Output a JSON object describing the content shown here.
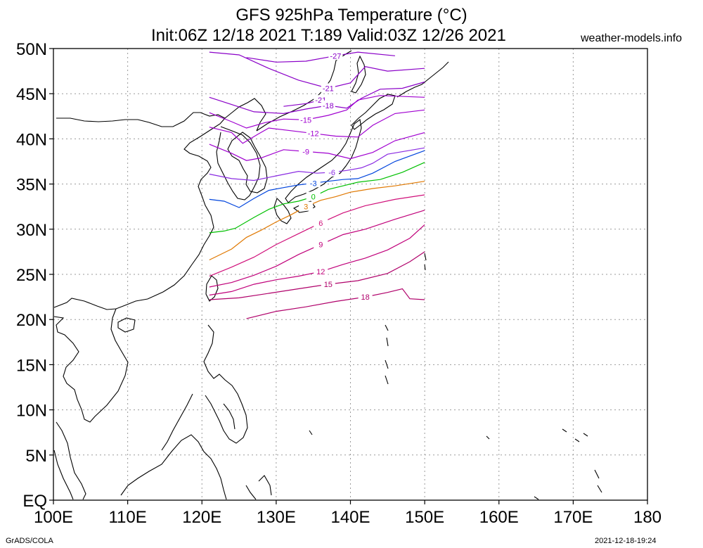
{
  "header": {
    "title_line1": "GFS 925hPa Temperature (°C)",
    "title_line2": "Init:06Z 12/18 2021 T:189 Valid:03Z 12/26 2021",
    "site": "weather-models.info"
  },
  "footer": {
    "left": "GrADS/COLA",
    "right": "2021-12-18-19:24"
  },
  "axes": {
    "lat_labels": [
      "EQ",
      "5N",
      "10N",
      "15N",
      "20N",
      "25N",
      "30N",
      "35N",
      "40N",
      "45N",
      "50N"
    ],
    "lat_values": [
      0,
      5,
      10,
      15,
      20,
      25,
      30,
      35,
      40,
      45,
      50
    ],
    "lon_labels": [
      "100E",
      "110E",
      "120E",
      "130E",
      "140E",
      "150E",
      "160E",
      "170E",
      "180"
    ],
    "lon_values": [
      100,
      110,
      120,
      130,
      140,
      150,
      160,
      170,
      180
    ],
    "lat_range": [
      0,
      50
    ],
    "lon_range": [
      100,
      180
    ],
    "grid": true
  },
  "contours": [
    {
      "level": -27,
      "label": "-27",
      "color": "#8a00c8",
      "points": [
        [
          126,
          49
        ],
        [
          130,
          48.5
        ],
        [
          134,
          48.6
        ],
        [
          138,
          49.2
        ],
        [
          141,
          49.6
        ],
        [
          146,
          49.2
        ]
      ]
    },
    {
      "level": -21,
      "label": "-21",
      "color": "#8a00c8",
      "points": [
        [
          121,
          49.6
        ],
        [
          125,
          49.3
        ],
        [
          129,
          47.8
        ],
        [
          133,
          46.5
        ],
        [
          137,
          45.6
        ],
        [
          140,
          46.2
        ],
        [
          142,
          48
        ],
        [
          145,
          47.5
        ],
        [
          150,
          47.8
        ]
      ]
    },
    {
      "level": -21,
      "label": "-21",
      "color": "#8a00c8",
      "points": [
        [
          131,
          43.6
        ],
        [
          134,
          43.9
        ],
        [
          136,
          44.3
        ],
        [
          137.5,
          43.8
        ]
      ]
    },
    {
      "level": -18,
      "label": "-18",
      "color": "#8a00c8",
      "points": [
        [
          121,
          44.6
        ],
        [
          124,
          43.8
        ],
        [
          127,
          43
        ],
        [
          131,
          42.8
        ],
        [
          134,
          43.3
        ],
        [
          137,
          43.7
        ],
        [
          139.5,
          43.4
        ],
        [
          141.5,
          44.5
        ],
        [
          144,
          45.5
        ],
        [
          147,
          45.6
        ],
        [
          150,
          46.3
        ]
      ]
    },
    {
      "level": -15,
      "label": "-15",
      "color": "#a000d0",
      "points": [
        [
          121,
          42.9
        ],
        [
          124,
          41.9
        ],
        [
          126,
          41.2
        ],
        [
          128.5,
          41.8
        ],
        [
          131,
          42.2
        ],
        [
          134,
          42.1
        ],
        [
          137,
          42.6
        ],
        [
          139.5,
          43.2
        ],
        [
          141,
          44.3
        ],
        [
          144,
          44.8
        ],
        [
          150,
          44.6
        ]
      ]
    },
    {
      "level": -12,
      "label": "-12",
      "color": "#a000d0",
      "points": [
        [
          121,
          41.3
        ],
        [
          124,
          40.7
        ],
        [
          125.5,
          39.5
        ],
        [
          127.5,
          40.5
        ],
        [
          129,
          41.2
        ],
        [
          132,
          40.9
        ],
        [
          135,
          40.6
        ],
        [
          138,
          40.3
        ],
        [
          141,
          40.2
        ],
        [
          143,
          41.5
        ],
        [
          146,
          42.8
        ],
        [
          150,
          43.2
        ]
      ]
    },
    {
      "level": -9,
      "label": "-9",
      "color": "#a000d0",
      "points": [
        [
          121,
          39.4
        ],
        [
          124,
          38.4
        ],
        [
          126,
          37.6
        ],
        [
          128,
          37.9
        ],
        [
          131,
          38.8
        ],
        [
          134,
          38.6
        ],
        [
          137,
          38.4
        ],
        [
          140,
          37.8
        ],
        [
          143,
          38.5
        ],
        [
          146,
          39.8
        ],
        [
          150,
          40.7
        ]
      ]
    },
    {
      "level": -6,
      "label": "-6",
      "color": "#8a2be2",
      "points": [
        [
          121,
          36.1
        ],
        [
          124,
          35.6
        ],
        [
          127,
          35.4
        ],
        [
          130,
          35.9
        ],
        [
          133,
          36.4
        ],
        [
          135.5,
          36.2
        ],
        [
          137.5,
          36.3
        ],
        [
          139.5,
          36.5
        ],
        [
          141.5,
          36.8
        ],
        [
          143,
          37.3
        ],
        [
          145,
          38.3
        ],
        [
          150,
          39
        ]
      ]
    },
    {
      "level": -3,
      "label": "-3",
      "color": "#0044dd",
      "points": [
        [
          121,
          33.3
        ],
        [
          123,
          33.1
        ],
        [
          125,
          32.4
        ],
        [
          127,
          33.4
        ],
        [
          129,
          34.3
        ],
        [
          131,
          34.6
        ],
        [
          133,
          34.9
        ],
        [
          135,
          35.1
        ],
        [
          137,
          35.3
        ],
        [
          139,
          35.5
        ],
        [
          141,
          35.6
        ],
        [
          143,
          36.2
        ],
        [
          146,
          37.5
        ],
        [
          150,
          38.7
        ]
      ]
    },
    {
      "level": 0,
      "label": "0",
      "color": "#00c000",
      "points": [
        [
          121,
          29.6
        ],
        [
          123,
          29.8
        ],
        [
          124.5,
          30.1
        ],
        [
          127,
          31.3
        ],
        [
          129,
          32.2
        ],
        [
          131,
          32.8
        ],
        [
          133,
          33.1
        ],
        [
          135,
          33.6
        ],
        [
          137,
          34.4
        ],
        [
          139,
          34.8
        ],
        [
          141,
          35.2
        ],
        [
          144,
          35.5
        ],
        [
          147,
          36.3
        ],
        [
          150,
          37.4
        ]
      ]
    },
    {
      "level": 3,
      "label": "3",
      "color": "#e07800",
      "points": [
        [
          121,
          26.6
        ],
        [
          124,
          27.8
        ],
        [
          126,
          29.1
        ],
        [
          128,
          29.9
        ],
        [
          130,
          30.8
        ],
        [
          132,
          31.6
        ],
        [
          134,
          32.5
        ],
        [
          136,
          33.2
        ],
        [
          138,
          33.6
        ],
        [
          140,
          34.1
        ],
        [
          143,
          34.5
        ],
        [
          146,
          34.8
        ],
        [
          150,
          35.3
        ]
      ]
    },
    {
      "level": 6,
      "label": "6",
      "color": "#d0107a",
      "points": [
        [
          121,
          24.8
        ],
        [
          124,
          25.8
        ],
        [
          127,
          26.9
        ],
        [
          130,
          28.3
        ],
        [
          133,
          29.5
        ],
        [
          136,
          30.7
        ],
        [
          139,
          31.8
        ],
        [
          142,
          32.6
        ],
        [
          146,
          33.3
        ],
        [
          150,
          33.8
        ]
      ]
    },
    {
      "level": 9,
      "label": "9",
      "color": "#c0007a",
      "points": [
        [
          121,
          23.6
        ],
        [
          124,
          24.1
        ],
        [
          127,
          24.9
        ],
        [
          130,
          25.9
        ],
        [
          133,
          27.2
        ],
        [
          136,
          28.3
        ],
        [
          139,
          29.4
        ],
        [
          142,
          30
        ],
        [
          146,
          31.1
        ],
        [
          150,
          32.1
        ]
      ]
    },
    {
      "level": 12,
      "label": "12",
      "color": "#c0007a",
      "points": [
        [
          121,
          22.7
        ],
        [
          124,
          23.1
        ],
        [
          127,
          23.9
        ],
        [
          130,
          24.4
        ],
        [
          133,
          24.8
        ],
        [
          136,
          25.3
        ],
        [
          139,
          26.1
        ],
        [
          142,
          26.8
        ],
        [
          145,
          27.7
        ],
        [
          148,
          29
        ],
        [
          150,
          30.5
        ]
      ]
    },
    {
      "level": 15,
      "label": "15",
      "color": "#b0006a",
      "points": [
        [
          121,
          22.2
        ],
        [
          125,
          22.4
        ],
        [
          129,
          22.9
        ],
        [
          133,
          23.4
        ],
        [
          137,
          23.9
        ],
        [
          141,
          24.3
        ],
        [
          145,
          25.1
        ],
        [
          148,
          26.4
        ],
        [
          150,
          27.5
        ]
      ]
    },
    {
      "level": 18,
      "label": "18",
      "color": "#b0006a",
      "points": [
        [
          126,
          20.1
        ],
        [
          130,
          20.9
        ],
        [
          134,
          21.4
        ],
        [
          138,
          22
        ],
        [
          142,
          22.5
        ],
        [
          145,
          23
        ],
        [
          147,
          23.4
        ],
        [
          148,
          22.3
        ],
        [
          150,
          22.2
        ]
      ]
    }
  ]
}
